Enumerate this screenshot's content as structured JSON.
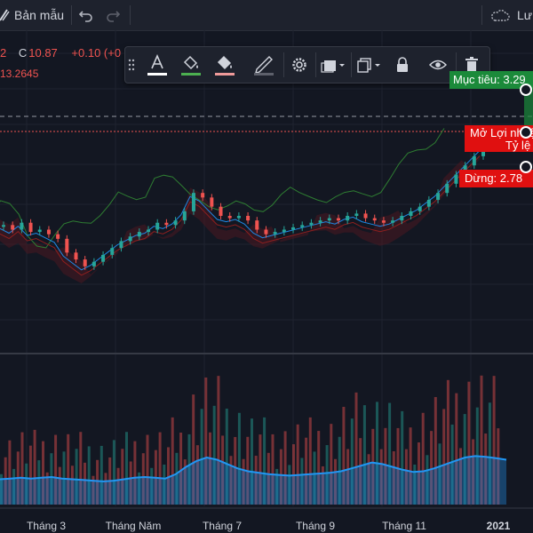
{
  "topbar": {
    "template_label": "Bản mẫu",
    "save_label": "Lư",
    "icons": [
      "layout-icon",
      "undo-icon",
      "redo-icon",
      "cloud-icon"
    ]
  },
  "ohlc": {
    "prefix": "2",
    "close_label": "C",
    "close_value": "10.87",
    "change": "+0.10 (+0",
    "sub_value": "13.2645"
  },
  "floating_toolbar": {
    "items": [
      "drag-handle-icon",
      "text-color-icon",
      "fill-color-icon",
      "background-color-icon",
      "pencil-icon",
      "settings-icon",
      "template-icon",
      "clone-icon",
      "lock-icon",
      "eye-icon",
      "trash-icon"
    ]
  },
  "position": {
    "target_label": "Mục tiêu: 3.29",
    "open_label": "Mở Lợi nhuận",
    "ratio_label": "Tỷ lệ",
    "stop_label": "Dừng: 2.78"
  },
  "xaxis": {
    "labels": [
      "Tháng 3",
      "Tháng Năm",
      "Tháng 7",
      "Tháng 9",
      "Tháng 11",
      "2021"
    ]
  },
  "colors": {
    "background": "#131722",
    "up": "#26a69a",
    "down": "#ef5350",
    "target_green": "#1b8a3a",
    "stop_red": "#e01010",
    "volume_ma": "#2196f3"
  },
  "chart_data": {
    "type": "candlestick",
    "x_range": [
      "Tháng 1 2020",
      "Tháng 1 2021"
    ],
    "close_series": [
      10.2,
      10.1,
      10.25,
      10.05,
      10.1,
      10.0,
      9.9,
      9.6,
      9.45,
      9.3,
      9.4,
      9.55,
      9.7,
      9.85,
      9.95,
      10.05,
      10.1,
      10.25,
      10.2,
      10.3,
      10.5,
      10.9,
      10.8,
      10.6,
      10.4,
      10.35,
      10.4,
      10.3,
      10.1,
      10.0,
      10.05,
      10.1,
      10.15,
      10.2,
      10.25,
      10.3,
      10.35,
      10.3,
      10.4,
      10.45,
      10.35,
      10.3,
      10.25,
      10.3,
      10.4,
      10.5,
      10.6,
      10.75,
      10.9,
      11.1,
      11.3,
      11.5,
      11.7,
      11.9
    ],
    "volume_ma_series": [
      0.35,
      0.36,
      0.37,
      0.36,
      0.37,
      0.38,
      0.36,
      0.35,
      0.34,
      0.33,
      0.32,
      0.33,
      0.35,
      0.37,
      0.38,
      0.37,
      0.36,
      0.42,
      0.52,
      0.6,
      0.65,
      0.62,
      0.56,
      0.5,
      0.46,
      0.44,
      0.42,
      0.41,
      0.4,
      0.41,
      0.42,
      0.43,
      0.44,
      0.46,
      0.5,
      0.54,
      0.58,
      0.56,
      0.52,
      0.48,
      0.45,
      0.46,
      0.5,
      0.55,
      0.6,
      0.65,
      0.67,
      0.66,
      0.64,
      0.62
    ],
    "target_price": 3.29,
    "stop_price": 2.78
  }
}
